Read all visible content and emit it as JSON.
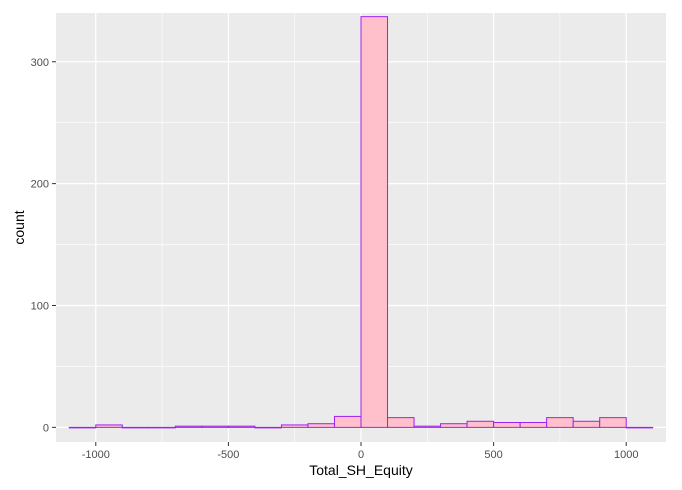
{
  "chart_data": {
    "type": "bar",
    "subtype": "histogram",
    "title": "",
    "xlabel": "Total_SH_Equity",
    "ylabel": "count",
    "xlim": [
      -1150,
      1150
    ],
    "ylim": [
      -12,
      340
    ],
    "x_ticks": [
      -1000,
      -500,
      0,
      500,
      1000
    ],
    "x_tick_labels": [
      "-1000",
      "-500",
      "0",
      "500",
      "1000"
    ],
    "y_ticks": [
      0,
      100,
      200,
      300
    ],
    "y_tick_labels": [
      "0",
      "100",
      "200",
      "300"
    ],
    "bin_width": 100,
    "bin_edges": [
      -1100,
      -1000,
      -900,
      -800,
      -700,
      -600,
      -500,
      -400,
      -300,
      -200,
      -100,
      0,
      100,
      200,
      300,
      400,
      500,
      600,
      700,
      800,
      900,
      1000,
      1100
    ],
    "counts": [
      0,
      2,
      0,
      0,
      1,
      1,
      1,
      0,
      2,
      3,
      9,
      337,
      8,
      1,
      3,
      5,
      4,
      4,
      8,
      5,
      8,
      0
    ],
    "fill_color": "#FFC0CB",
    "border_color": "#A020F0",
    "panel_background": "#EBEBEB",
    "grid": true,
    "grid_color": "#FFFFFF",
    "legend": "none"
  }
}
